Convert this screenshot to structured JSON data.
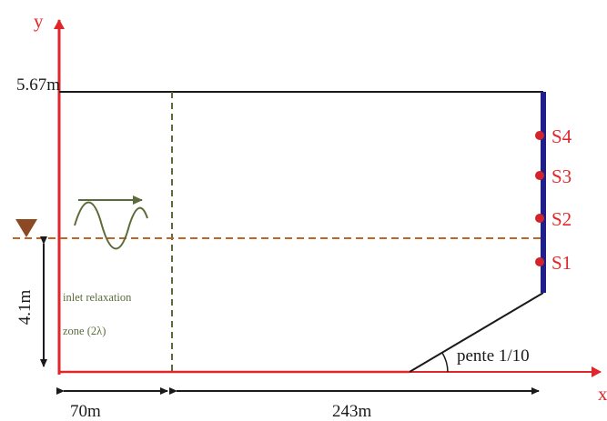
{
  "axes": {
    "y_label": "y",
    "x_label": "x",
    "axis_color": "#e0262b"
  },
  "labels": {
    "top_height": "5.67m",
    "water_depth": "4.1m",
    "relax_width": "70m",
    "domain_width": "243m",
    "slope": "pente 1/10",
    "relax_zone_line1": "inlet relaxation",
    "relax_zone_line2": "zone (2λ)"
  },
  "sensors": [
    {
      "name": "S4"
    },
    {
      "name": "S3"
    },
    {
      "name": "S2"
    },
    {
      "name": "S1"
    }
  ],
  "colors": {
    "domain_outline": "#1a1a1a",
    "wall": "#1f1f8a",
    "relaxation_line": "#5b6b3a",
    "water_level": "#c0652a",
    "wave": "#5b6b3a",
    "sensor": "#d4242b"
  },
  "icons": {
    "free_surface_marker": "down-triangle-icon",
    "wave_direction": "right-arrow-icon"
  }
}
